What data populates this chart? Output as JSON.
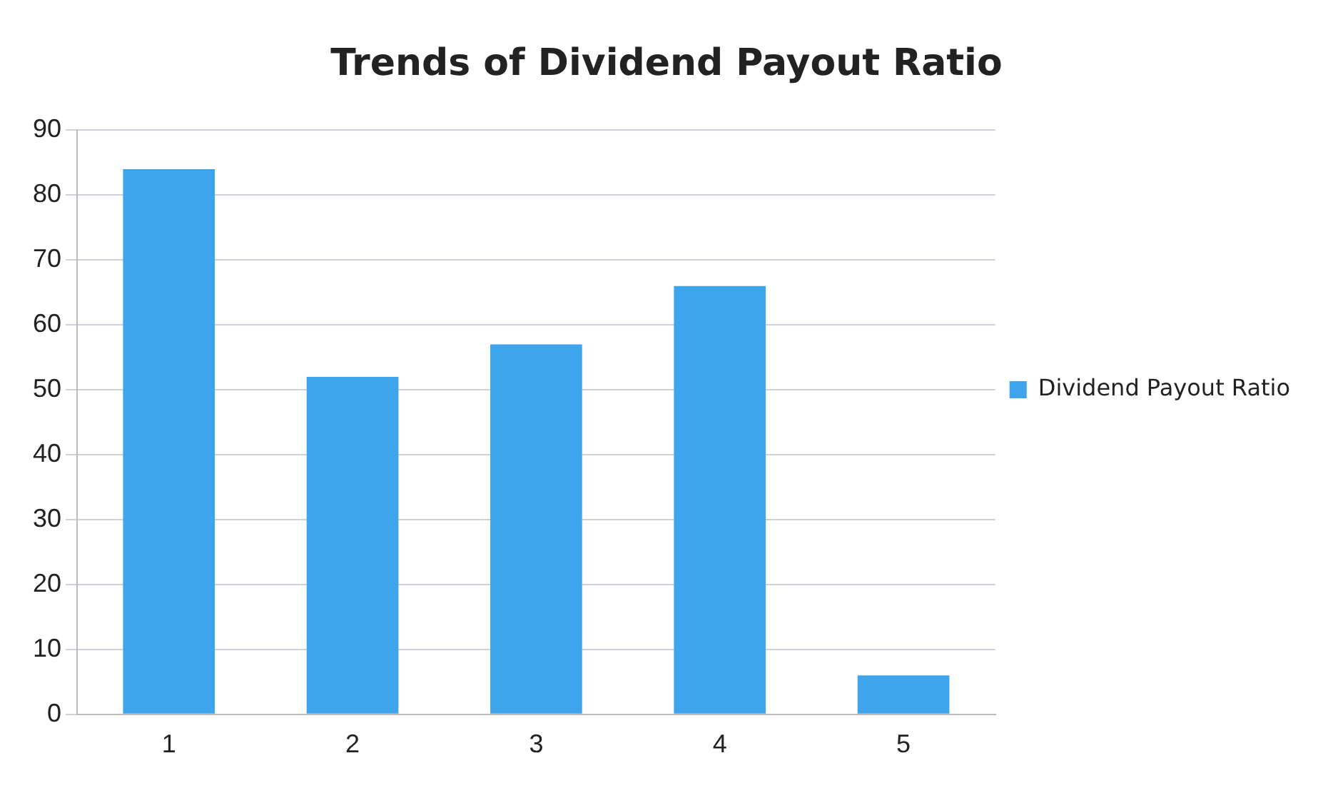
{
  "chart_data": {
    "type": "bar",
    "title": "Trends of Dividend Payout Ratio",
    "categories": [
      "1",
      "2",
      "3",
      "4",
      "5"
    ],
    "series": [
      {
        "name": "Dividend Payout Ratio",
        "color": "#3ea4ec",
        "values": [
          84,
          52,
          57,
          66,
          6
        ]
      }
    ],
    "ylim": [
      0,
      90
    ],
    "yticks": [
      0,
      10,
      20,
      30,
      40,
      50,
      60,
      70,
      80,
      90
    ],
    "grid": "y",
    "legend": "right"
  }
}
